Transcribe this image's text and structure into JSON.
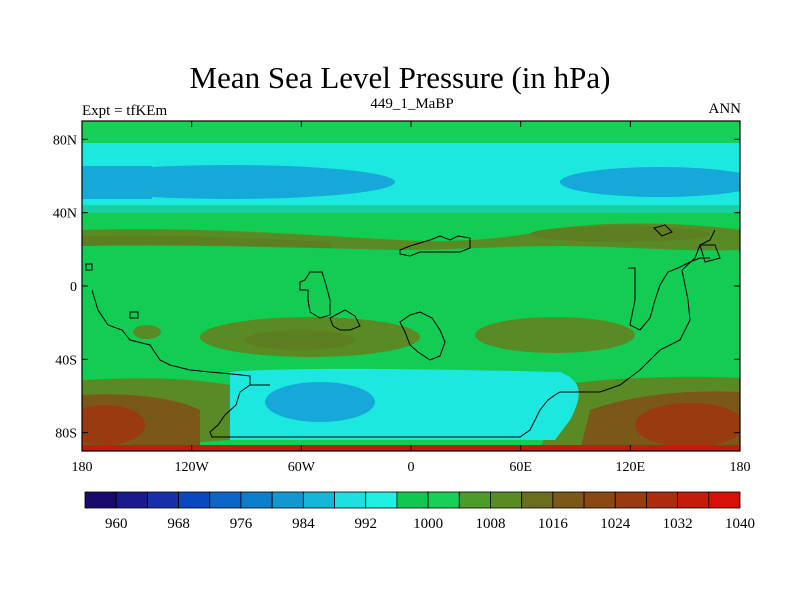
{
  "title": "Mean Sea Level Pressure (in hPa)",
  "left_label": "Expt = tfKEm",
  "center_label": "449_1_MaBP",
  "right_label": "ANN",
  "map": {
    "lon_ticks": [
      "180",
      "120W",
      "60W",
      "0",
      "60E",
      "120E",
      "180"
    ],
    "lat_ticks": [
      "80N",
      "40N",
      "0",
      "40S",
      "80S"
    ],
    "lon_range": [
      -180,
      180
    ],
    "lat_range": [
      -90,
      90
    ]
  },
  "colorbar": {
    "labels": [
      "960",
      "968",
      "976",
      "984",
      "992",
      "1000",
      "1008",
      "1016",
      "1024",
      "1032",
      "1040"
    ],
    "colors": [
      "#1a0a6b",
      "#1b1a8c",
      "#1530a8",
      "#0a48c0",
      "#0c66c8",
      "#0c7fcc",
      "#1298d0",
      "#16b7d6",
      "#1ce0e0",
      "#20f0e0",
      "#10c850",
      "#18d058",
      "#4c9c2a",
      "#5a8a24",
      "#6a6e1e",
      "#7a5818",
      "#8a4812",
      "#9a3a10",
      "#ae2c0e",
      "#c41c0a",
      "#d61208"
    ]
  }
}
